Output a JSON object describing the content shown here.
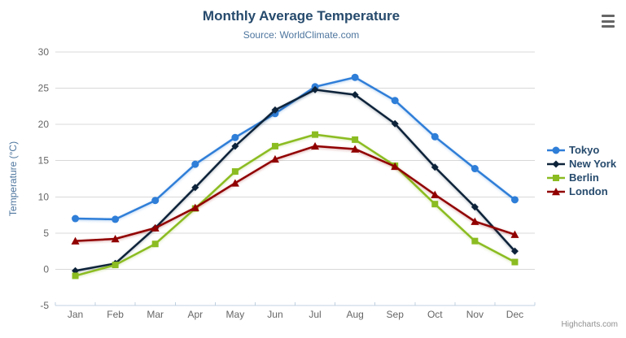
{
  "chart_data": {
    "type": "line",
    "title": "Monthly Average Temperature",
    "subtitle": "Source: WorldClimate.com",
    "xlabel": "",
    "ylabel": "Temperature (°C)",
    "categories": [
      "Jan",
      "Feb",
      "Mar",
      "Apr",
      "May",
      "Jun",
      "Jul",
      "Aug",
      "Sep",
      "Oct",
      "Nov",
      "Dec"
    ],
    "series": [
      {
        "name": "Tokyo",
        "marker": "circle",
        "color": "#2f7ed8",
        "values": [
          7.0,
          6.9,
          9.5,
          14.5,
          18.2,
          21.5,
          25.2,
          26.5,
          23.3,
          18.3,
          13.9,
          9.6
        ]
      },
      {
        "name": "New York",
        "marker": "diamond",
        "color": "#0d233a",
        "values": [
          -0.2,
          0.8,
          5.7,
          11.3,
          17.0,
          22.0,
          24.8,
          24.1,
          20.1,
          14.1,
          8.6,
          2.5
        ]
      },
      {
        "name": "Berlin",
        "marker": "square",
        "color": "#8bbc21",
        "values": [
          -0.9,
          0.6,
          3.5,
          8.4,
          13.5,
          17.0,
          18.6,
          17.9,
          14.3,
          9.0,
          3.9,
          1.0
        ]
      },
      {
        "name": "London",
        "marker": "triangle",
        "color": "#910000",
        "values": [
          3.9,
          4.2,
          5.7,
          8.5,
          11.9,
          15.2,
          17.0,
          16.6,
          14.2,
          10.3,
          6.6,
          4.8
        ]
      }
    ],
    "ylim": [
      -5,
      30
    ],
    "yticks": [
      -5,
      0,
      5,
      10,
      15,
      20,
      25,
      30
    ],
    "grid": true,
    "legend_position": "right"
  },
  "ui": {
    "credits": "Highcharts.com",
    "menu_icon": "hamburger",
    "colors": {
      "title": "#274b6d",
      "subtitle": "#4d759e",
      "axis_title": "#4d759e",
      "axis_labels": "#666666",
      "grid": "#d8d8d8",
      "axis_line": "#c0d0e0",
      "legend_text": "#274b6d",
      "credits": "#909090",
      "menu_icon": "#666666",
      "background": "#ffffff"
    }
  }
}
